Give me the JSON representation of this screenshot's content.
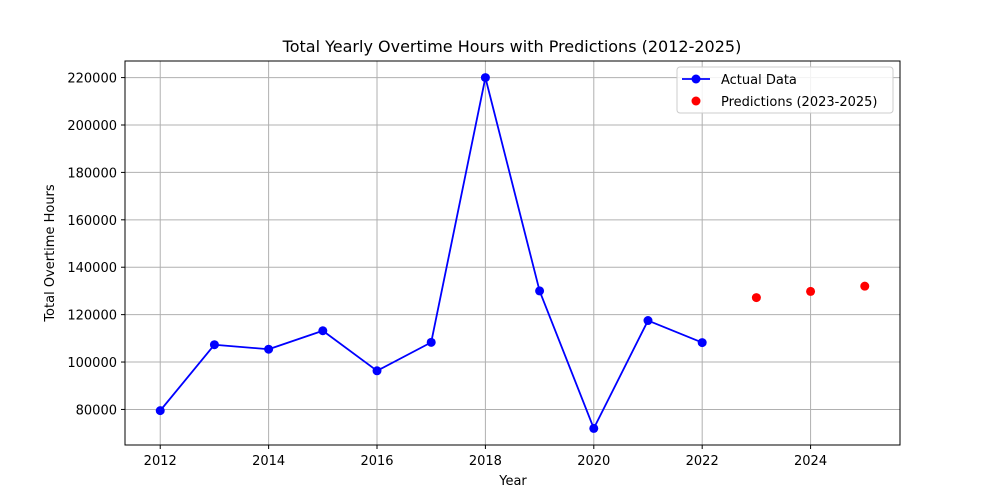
{
  "chart_data": {
    "type": "line",
    "title": "Total Yearly Overtime Hours with Predictions (2012-2025)",
    "xlabel": "Year",
    "ylabel": "Total Overtime Hours",
    "xlim": [
      2011.35,
      2025.65
    ],
    "ylim": [
      65000,
      227000
    ],
    "x_ticks": [
      2012,
      2014,
      2016,
      2018,
      2020,
      2022,
      2024
    ],
    "y_ticks": [
      80000,
      100000,
      120000,
      140000,
      160000,
      180000,
      200000,
      220000
    ],
    "grid": true,
    "legend_position": "top-right",
    "series": [
      {
        "name": "Actual Data",
        "style": "line-with-markers",
        "color": "#0000ff",
        "x": [
          2012,
          2013,
          2014,
          2015,
          2016,
          2017,
          2018,
          2019,
          2020,
          2021,
          2022
        ],
        "values": [
          79500,
          107300,
          105400,
          113200,
          96300,
          108300,
          220000,
          130000,
          72000,
          117500,
          108200
        ]
      },
      {
        "name": "Predictions (2023-2025)",
        "style": "scatter",
        "color": "#ff0000",
        "x": [
          2023,
          2024,
          2025
        ],
        "values": [
          127200,
          129800,
          132000
        ]
      }
    ]
  }
}
